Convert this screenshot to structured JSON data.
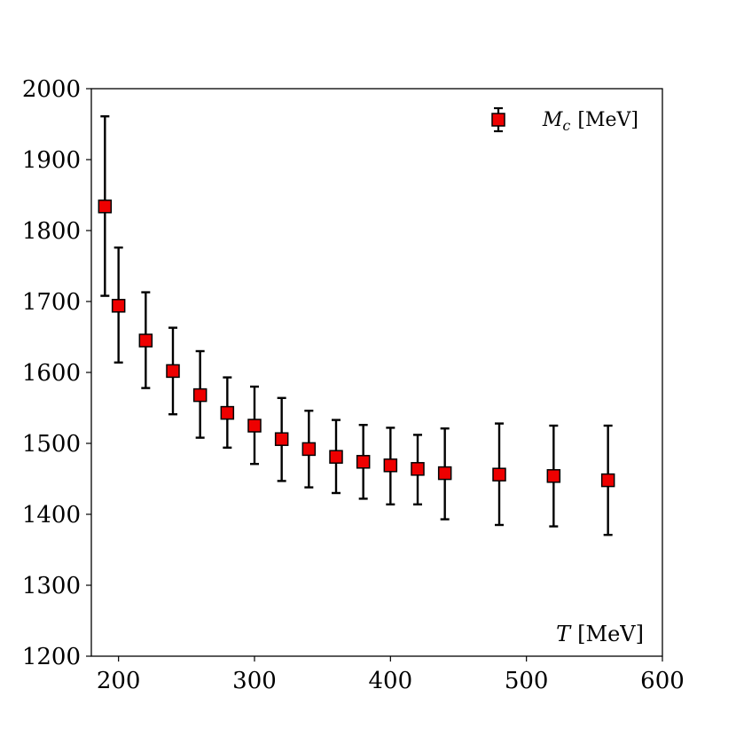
{
  "chart_data": {
    "type": "scatter",
    "title": "",
    "xlabel_var": "T",
    "xlabel_unit": "[MeV]",
    "xlim": [
      180,
      600
    ],
    "ylim": [
      1200,
      2000
    ],
    "xticks": [
      200,
      300,
      400,
      500,
      600
    ],
    "yticks": [
      1200,
      1300,
      1400,
      1500,
      1600,
      1700,
      1800,
      1900,
      2000
    ],
    "grid": false,
    "legend_placement": "top-right",
    "marker_color": "#ee0000",
    "series": [
      {
        "name_var": "M",
        "name_sub": "c",
        "name_unit": "[MeV]",
        "x": [
          190,
          200,
          220,
          240,
          260,
          280,
          300,
          320,
          340,
          360,
          380,
          400,
          420,
          440,
          480,
          520,
          560
        ],
        "y": [
          1834,
          1694,
          1645,
          1602,
          1568,
          1543,
          1525,
          1506,
          1492,
          1481,
          1474,
          1469,
          1464,
          1458,
          1456,
          1454,
          1448
        ],
        "yerr_low": [
          1708,
          1614,
          1578,
          1541,
          1508,
          1494,
          1471,
          1447,
          1438,
          1430,
          1422,
          1414,
          1414,
          1393,
          1385,
          1383,
          1371
        ],
        "yerr_high": [
          1961,
          1776,
          1713,
          1663,
          1630,
          1593,
          1580,
          1564,
          1546,
          1533,
          1526,
          1522,
          1512,
          1521,
          1528,
          1525,
          1525
        ]
      }
    ]
  }
}
